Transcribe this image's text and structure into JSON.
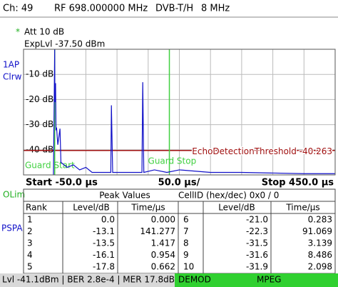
{
  "header": {
    "channel": "Ch:  49",
    "rf": "RF 698.000000 MHz",
    "standard": "DVB-T/H",
    "bandwidth": "8 MHz",
    "att_marker": "*",
    "att": "Att   10 dB",
    "exp_level": "ExpLvl -37.50 dBm",
    "trace_mode": "Clrw",
    "olim": "OLim",
    "pspa": "PSPA"
  },
  "chart_data": {
    "type": "line",
    "series": [
      {
        "name": "1AP",
        "color": "#1010c8",
        "x": [
          -2,
          0,
          0.3,
          0.7,
          1,
          1.4,
          2.1,
          3.1,
          5,
          8.5,
          10,
          20,
          30,
          40,
          50,
          60,
          90,
          91,
          93,
          120,
          140,
          141.3,
          143,
          160,
          180,
          200,
          250,
          300,
          400,
          450
        ],
        "values": [
          -50,
          0,
          -21,
          -17.8,
          -16.1,
          -13.5,
          -31.9,
          -31.5,
          -38,
          -31.6,
          -45,
          -47,
          -46,
          -48,
          -47,
          -49,
          -49,
          -22.3,
          -49,
          -49,
          -49,
          -13.1,
          -49,
          -48,
          -49,
          -48,
          -49,
          -49,
          -49.5,
          -49.5
        ]
      }
    ],
    "xlim": [
      -50,
      450
    ],
    "xticks": [
      -50,
      0,
      50,
      100,
      150,
      200,
      250,
      300,
      350,
      400,
      450
    ],
    "ylim": [
      -50,
      0
    ],
    "yticks": [
      {
        "value": -10,
        "label": "-10 dB"
      },
      {
        "value": -20,
        "label": "-20 dB"
      },
      {
        "value": -30,
        "label": "-30 dB"
      },
      {
        "value": -40,
        "label": "-40 dB"
      }
    ],
    "grid": true,
    "threshold": {
      "value": -40.263,
      "label": "EchoDetectionThreshold -40.263",
      "color": "#a01010"
    },
    "guards": [
      {
        "value": 0,
        "label": "Guard Start",
        "color": "#40d040"
      },
      {
        "value": 184,
        "label": "Guard Stop",
        "color": "#40d040"
      }
    ],
    "start_label": "Start -50.0 µs",
    "div_label": "50.0 µs/",
    "stop_label": "Stop 450.0 µs"
  },
  "table": {
    "title": "Peak Values",
    "cell_id": "CellID (hex/dec)  0x0 / 0",
    "columns": [
      "Rank",
      "Level/dB",
      "Time/µs",
      "Level/dB",
      "Time/µs"
    ],
    "rows": [
      [
        "1",
        "0.0",
        "0.000",
        "6",
        "-21.0",
        "0.283"
      ],
      [
        "2",
        "-13.1",
        "141.277",
        "7",
        "-22.3",
        "91.069"
      ],
      [
        "3",
        "-13.5",
        "1.417",
        "8",
        "-31.5",
        "3.139"
      ],
      [
        "4",
        "-16.1",
        "0.954",
        "9",
        "-31.6",
        "8.486"
      ],
      [
        "5",
        "-17.8",
        "0.662",
        "10",
        "-31.9",
        "2.098"
      ]
    ]
  },
  "status": {
    "text": "Lvl -41.1dBm | BER 2.8e-4 | MER 17.8dB",
    "demod": "DEMOD",
    "mpeg": "MPEG"
  }
}
